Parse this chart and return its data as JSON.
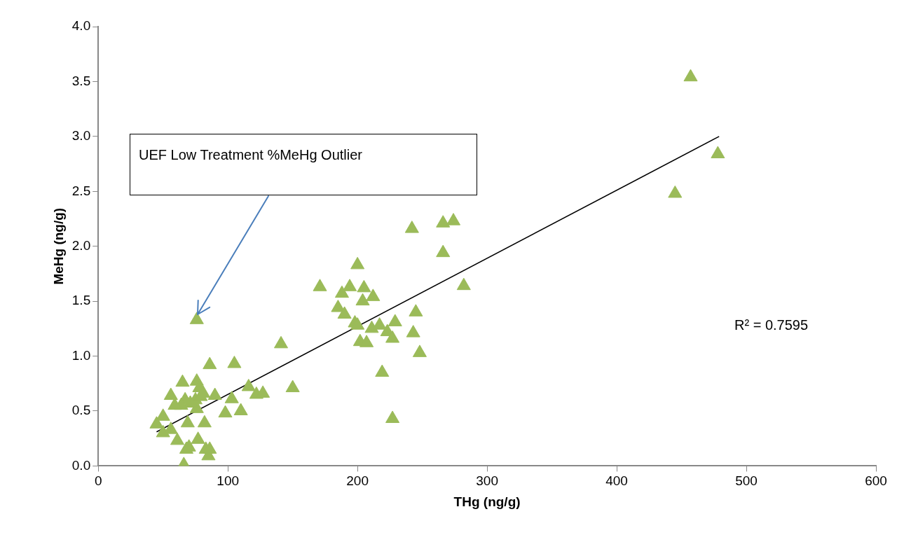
{
  "chart_data": {
    "type": "scatter",
    "xlabel": "THg (ng/g)",
    "ylabel": "MeHg (ng/g)",
    "xlim": [
      0,
      600
    ],
    "xticks": [
      0,
      100,
      200,
      300,
      400,
      500,
      600
    ],
    "ylim": [
      0,
      4
    ],
    "yticks": [
      {
        "value": 0,
        "label": "0.0"
      },
      {
        "value": 0.5,
        "label": "0.5"
      },
      {
        "value": 1,
        "label": "1.0"
      },
      {
        "value": 1.5,
        "label": "1.5"
      },
      {
        "value": 2,
        "label": "2.0"
      },
      {
        "value": 2.5,
        "label": "2.5"
      },
      {
        "value": 3,
        "label": "3.0"
      },
      {
        "value": 3.5,
        "label": "3.5"
      },
      {
        "value": 4,
        "label": "4.0"
      }
    ],
    "grid": false,
    "legend": false,
    "marker": "triangle",
    "series": [
      {
        "color": "#9bbb59",
        "x": [
          76,
          65,
          56,
          45,
          50,
          50,
          56,
          61,
          66,
          68,
          70,
          69,
          77,
          83,
          85,
          86,
          82,
          76,
          71,
          75,
          67,
          64,
          59,
          76,
          78,
          79,
          81,
          86,
          90,
          98,
          103,
          105,
          110,
          116,
          122,
          127,
          141,
          150,
          171,
          200,
          194,
          188,
          205,
          212,
          204,
          185,
          190,
          198,
          200,
          211,
          217,
          229,
          223,
          227,
          202,
          207,
          245,
          243,
          248,
          219,
          227,
          242,
          266,
          274,
          266,
          282,
          457,
          478,
          445
        ],
        "values": [
          1.33,
          0.76,
          0.64,
          0.38,
          0.45,
          0.3,
          0.33,
          0.23,
          0.01,
          0.15,
          0.17,
          0.39,
          0.24,
          0.15,
          0.09,
          0.15,
          0.39,
          0.52,
          0.57,
          0.6,
          0.6,
          0.55,
          0.55,
          0.77,
          0.71,
          0.63,
          0.66,
          0.92,
          0.64,
          0.48,
          0.61,
          0.93,
          0.5,
          0.72,
          0.65,
          0.66,
          1.11,
          0.71,
          1.63,
          1.83,
          1.63,
          1.57,
          1.62,
          1.54,
          1.5,
          1.44,
          1.38,
          1.3,
          1.28,
          1.25,
          1.28,
          1.31,
          1.22,
          1.16,
          1.13,
          1.12,
          1.4,
          1.21,
          1.03,
          0.85,
          0.43,
          2.16,
          2.21,
          2.23,
          1.94,
          1.64,
          3.54,
          2.84,
          2.48
        ]
      },
      {
        "type": "line",
        "color": "#000000",
        "marker": "none",
        "x": [
          45,
          479
        ],
        "values": [
          0.31,
          3.0
        ]
      }
    ],
    "annotations": [
      "UEF Low Treatment %MeHg Outlier",
      "R² = 0.7595"
    ]
  }
}
